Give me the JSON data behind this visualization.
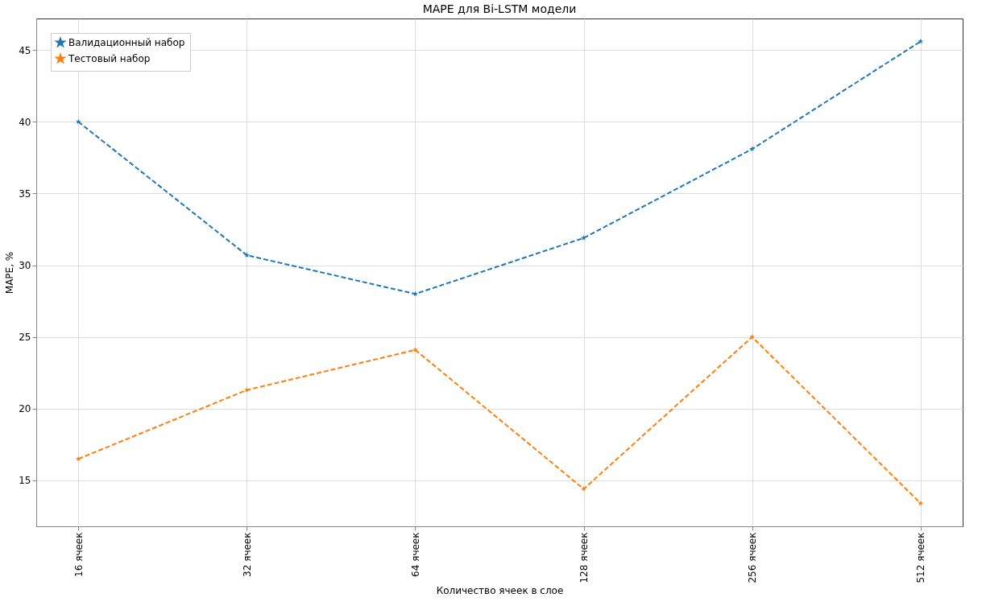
{
  "chart_data": {
    "type": "line",
    "title": "MAPE для Bi-LSTM модели",
    "xlabel": "Количество ячеек в слое",
    "ylabel": "MAPE, %",
    "categories": [
      "16 ячеек",
      "32 ячеек",
      "64 ячеек",
      "128 ячеек",
      "256 ячеек",
      "512 ячеек"
    ],
    "series": [
      {
        "name": "Валидационный набор",
        "color": "#1f77b4",
        "values": [
          40.0,
          30.7,
          28.0,
          31.9,
          38.1,
          45.6
        ]
      },
      {
        "name": "Тестовый набор",
        "color": "#ff7f0e",
        "values": [
          16.5,
          21.3,
          24.1,
          14.4,
          25.0,
          13.4
        ]
      }
    ],
    "ylim": [
      11.8,
      47.2
    ],
    "yticks": [
      15,
      20,
      25,
      30,
      35,
      40,
      45
    ],
    "grid": true,
    "legend": "top left",
    "marker": "star",
    "line_style": "dashed"
  }
}
